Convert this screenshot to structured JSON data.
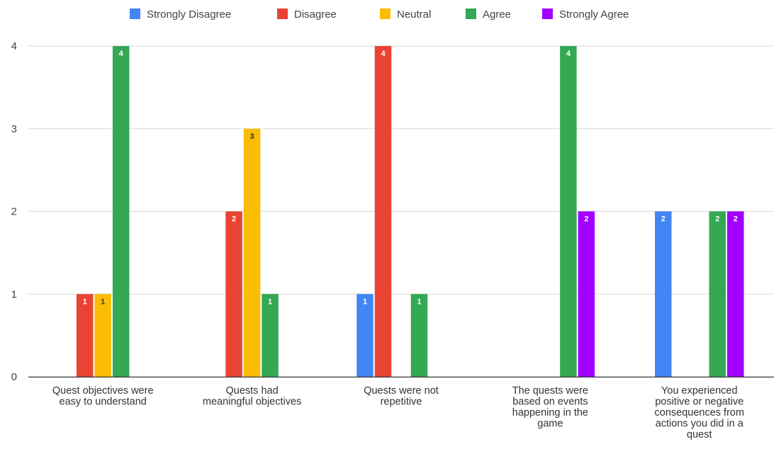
{
  "chart_data": {
    "type": "bar",
    "title": "",
    "xlabel": "",
    "ylabel": "",
    "ylim": [
      0,
      4
    ],
    "yticks": [
      0,
      1,
      2,
      3,
      4
    ],
    "grid": true,
    "legend_position": "top",
    "categories": [
      [
        "Quest objectives were",
        "easy to understand"
      ],
      [
        "Quests had",
        "meaningful objectives"
      ],
      [
        "Quests were not",
        "repetitive"
      ],
      [
        "The quests were",
        "based on events",
        "happening in the",
        "game"
      ],
      [
        "You experienced",
        "positive or negative",
        "consequences from",
        "actions you did in a",
        "quest"
      ]
    ],
    "series": [
      {
        "name": "Strongly Disagree",
        "color": "#4285f4",
        "label_color": "#ffffff",
        "values": [
          null,
          null,
          1,
          null,
          2
        ]
      },
      {
        "name": "Disagree",
        "color": "#ea4335",
        "label_color": "#ffffff",
        "values": [
          1,
          2,
          4,
          null,
          null
        ]
      },
      {
        "name": "Neutral",
        "color": "#fbbc04",
        "label_color": "#333333",
        "values": [
          1,
          3,
          null,
          null,
          null
        ]
      },
      {
        "name": "Agree",
        "color": "#34a853",
        "label_color": "#ffffff",
        "values": [
          4,
          1,
          1,
          4,
          2
        ]
      },
      {
        "name": "Strongly Agree",
        "color": "#a100ff",
        "label_color": "#ffffff",
        "values": [
          null,
          null,
          null,
          2,
          2
        ]
      }
    ]
  }
}
